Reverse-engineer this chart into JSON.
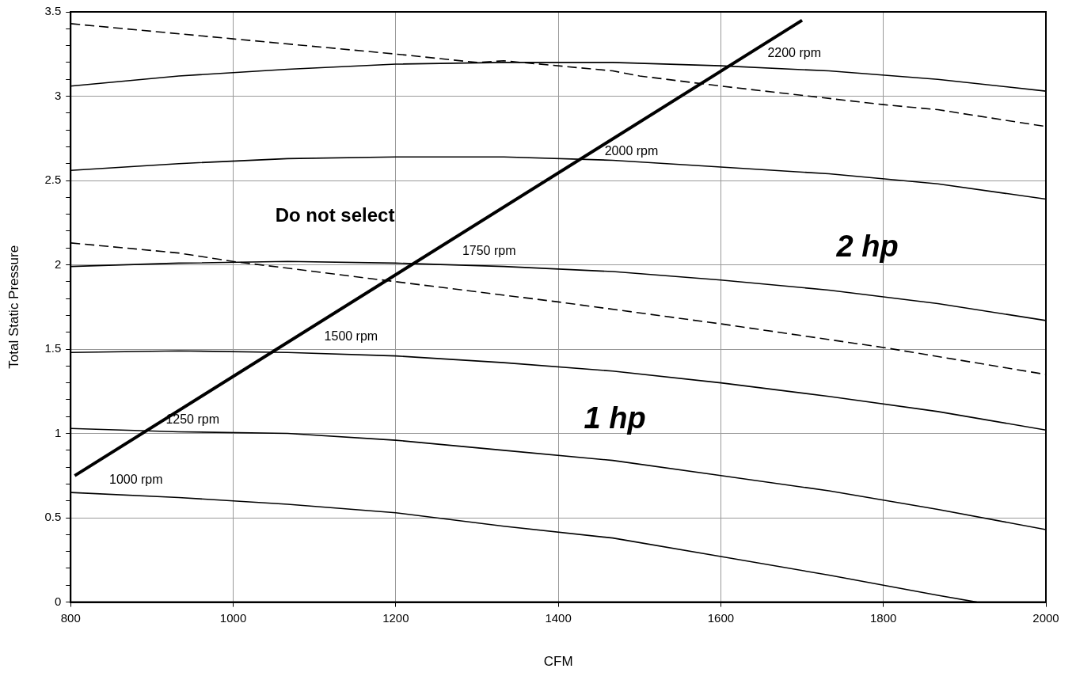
{
  "chart_data": {
    "type": "line",
    "xlabel": "CFM",
    "ylabel": "Total Static Pressure",
    "xlim": [
      800,
      2000
    ],
    "xticks": [
      800,
      1000,
      1200,
      1400,
      1600,
      1800,
      2000
    ],
    "ylim": [
      0,
      3.5
    ],
    "yticks": [
      0,
      {
        "value": 0.1,
        "label": null
      },
      {
        "value": 0.2,
        "label": null
      },
      {
        "value": 0.3,
        "label": null
      },
      {
        "value": 0.4,
        "label": null
      },
      0.5,
      {
        "value": 0.6,
        "label": null
      },
      {
        "value": 0.7,
        "label": null
      },
      {
        "value": 0.8,
        "label": null
      },
      {
        "value": 0.9,
        "label": null
      },
      1,
      {
        "value": 1.1,
        "label": null
      },
      {
        "value": 1.2,
        "label": null
      },
      {
        "value": 1.3,
        "label": null
      },
      {
        "value": 1.4,
        "label": null
      },
      1.5,
      {
        "value": 1.6,
        "label": null
      },
      {
        "value": 1.7,
        "label": null
      },
      {
        "value": 1.8,
        "label": null
      },
      {
        "value": 1.9,
        "label": null
      },
      2,
      {
        "value": 2.1,
        "label": null
      },
      {
        "value": 2.2,
        "label": null
      },
      {
        "value": 2.3,
        "label": null
      },
      {
        "value": 2.4,
        "label": null
      },
      2.5,
      {
        "value": 2.6,
        "label": null
      },
      {
        "value": 2.7,
        "label": null
      },
      {
        "value": 2.8,
        "label": null
      },
      {
        "value": 2.9,
        "label": null
      },
      3,
      {
        "value": 3.1,
        "label": null
      },
      {
        "value": 3.2,
        "label": null
      },
      {
        "value": 3.3,
        "label": null
      },
      {
        "value": 3.4,
        "label": null
      },
      3.5
    ],
    "grid": true,
    "marker": "none",
    "series": [
      {
        "name": "2200 rpm",
        "color": "#000000",
        "x": [
          800,
          933,
          1067,
          1200,
          1333,
          1467,
          1600,
          1733,
          1867,
          2000
        ],
        "values": [
          3.06,
          3.12,
          3.16,
          3.19,
          3.2,
          3.2,
          3.18,
          3.15,
          3.1,
          3.03
        ]
      },
      {
        "name": "2000 rpm",
        "color": "#000000",
        "x": [
          800,
          933,
          1067,
          1200,
          1333,
          1467,
          1600,
          1733,
          1867,
          2000
        ],
        "values": [
          2.56,
          2.6,
          2.63,
          2.64,
          2.64,
          2.62,
          2.58,
          2.54,
          2.48,
          2.39
        ]
      },
      {
        "name": "1750 rpm",
        "color": "#000000",
        "x": [
          800,
          933,
          1067,
          1200,
          1333,
          1467,
          1600,
          1733,
          1867,
          2000
        ],
        "values": [
          1.99,
          2.01,
          2.02,
          2.01,
          1.99,
          1.96,
          1.91,
          1.85,
          1.77,
          1.67
        ]
      },
      {
        "name": "1500 rpm",
        "color": "#000000",
        "x": [
          800,
          933,
          1067,
          1200,
          1333,
          1467,
          1600,
          1733,
          1867,
          2000
        ],
        "values": [
          1.48,
          1.49,
          1.48,
          1.46,
          1.42,
          1.37,
          1.3,
          1.22,
          1.13,
          1.02
        ]
      },
      {
        "name": "1250 rpm",
        "color": "#000000",
        "x": [
          800,
          933,
          1067,
          1200,
          1333,
          1467,
          1600,
          1733,
          1867,
          2000
        ],
        "values": [
          1.03,
          1.01,
          1.0,
          0.96,
          0.9,
          0.84,
          0.75,
          0.66,
          0.55,
          0.43
        ]
      },
      {
        "name": "1000 rpm",
        "color": "#000000",
        "x": [
          800,
          933,
          1067,
          1200,
          1333,
          1467,
          1600,
          1733,
          1867,
          1915
        ],
        "values": [
          0.65,
          0.62,
          0.58,
          0.53,
          0.45,
          0.38,
          0.27,
          0.16,
          0.04,
          0
        ]
      },
      {
        "color": "#000000",
        "line_style": "dashed",
        "x": [
          800,
          1000,
          1200,
          1300,
          1333,
          1467,
          1500,
          1600,
          1800,
          1867,
          2000
        ],
        "values": [
          3.43,
          3.34,
          3.25,
          3.2,
          3.21,
          3.15,
          3.12,
          3.06,
          2.95,
          2.92,
          2.82
        ]
      },
      {
        "color": "#000000",
        "line_style": "dashed",
        "x": [
          800,
          867,
          933,
          1000,
          1067,
          1200,
          1400,
          1600,
          1800,
          2000
        ],
        "values": [
          2.13,
          2.1,
          2.07,
          2.02,
          1.98,
          1.9,
          1.78,
          1.65,
          1.51,
          1.35
        ]
      },
      {
        "color": "#000000",
        "x": [
          805,
          1700
        ],
        "values": [
          0.75,
          3.45
        ]
      }
    ],
    "annotations": [
      "Do not select",
      "2 hp",
      "1 hp"
    ]
  }
}
